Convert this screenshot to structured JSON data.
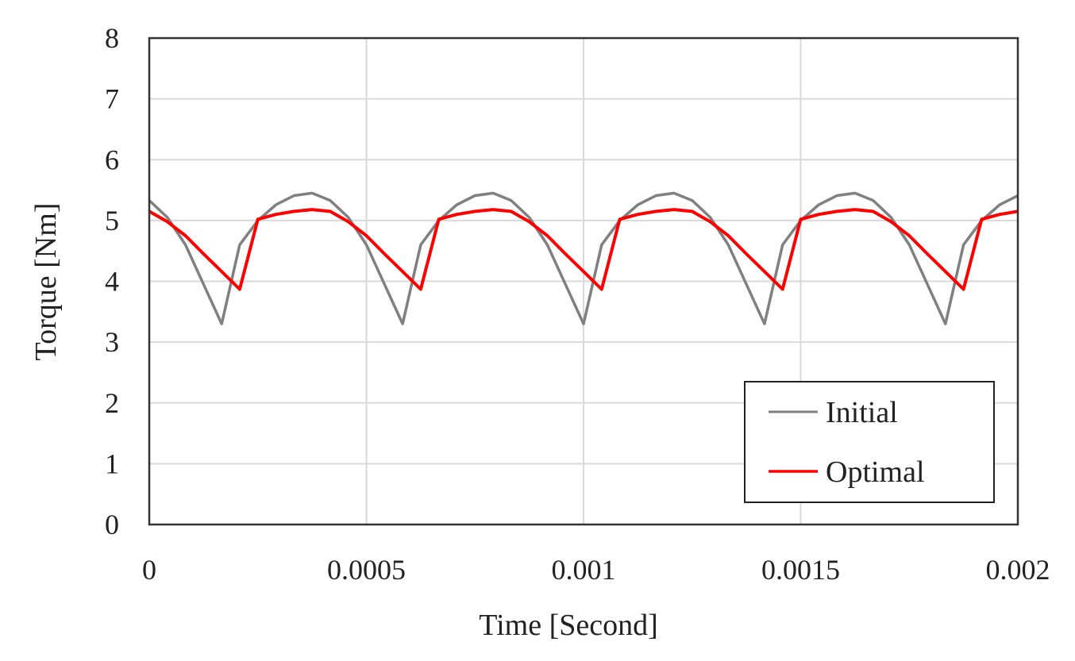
{
  "chart_data": {
    "type": "line",
    "title": "",
    "xlabel": "Time [Second]",
    "ylabel": "Torque [Nm]",
    "xlim": [
      0,
      0.002
    ],
    "ylim": [
      0,
      8
    ],
    "x_ticks": [
      "0",
      "0.0005",
      "0.001",
      "0.0015",
      "0.002"
    ],
    "x_tick_values": [
      0,
      0.0005,
      0.001,
      0.0015,
      0.002
    ],
    "y_ticks": [
      "0",
      "1",
      "2",
      "3",
      "4",
      "5",
      "6",
      "7",
      "8"
    ],
    "grid": true,
    "legend_position": "bottom-right",
    "x": [
      0,
      4.17e-05,
      8.33e-05,
      0.000125,
      0.0001667,
      0.0002083,
      0.00025,
      0.0002917,
      0.0003333,
      0.000375,
      0.0004167,
      0.0004583,
      0.0005,
      0.0005417,
      0.0005833,
      0.000625,
      0.0006667,
      0.0007083,
      0.00075,
      0.0007917,
      0.0008333,
      0.000875,
      0.0009167,
      0.0009583,
      0.001,
      0.0010417,
      0.0010833,
      0.001125,
      0.0011667,
      0.0012083,
      0.00125,
      0.0012917,
      0.0013333,
      0.001375,
      0.0014167,
      0.0014583,
      0.0015,
      0.0015417,
      0.0015833,
      0.001625,
      0.0016667,
      0.0017083,
      0.00175,
      0.0017917,
      0.0018333,
      0.001875,
      0.0019167,
      0.0019583,
      0.002
    ],
    "series": [
      {
        "name": "Initial",
        "color": "#808080",
        "values": [
          5.33,
          5.05,
          4.6,
          3.95,
          3.3,
          4.6,
          5.0,
          5.26,
          5.41,
          5.45,
          5.33,
          5.05,
          4.6,
          3.95,
          3.3,
          4.6,
          5.0,
          5.26,
          5.41,
          5.45,
          5.33,
          5.05,
          4.6,
          3.95,
          3.3,
          4.6,
          5.0,
          5.26,
          5.41,
          5.45,
          5.33,
          5.05,
          4.6,
          3.95,
          3.3,
          4.6,
          5.0,
          5.26,
          5.41,
          5.45,
          5.33,
          5.05,
          4.6,
          3.95,
          3.3,
          4.6,
          5.0,
          5.26,
          5.41
        ]
      },
      {
        "name": "Optimal",
        "color": "#ff0000",
        "values": [
          5.15,
          4.98,
          4.75,
          4.45,
          4.16,
          3.87,
          5.02,
          5.1,
          5.15,
          5.18,
          5.15,
          4.98,
          4.75,
          4.45,
          4.16,
          3.87,
          5.02,
          5.1,
          5.15,
          5.18,
          5.15,
          4.98,
          4.75,
          4.45,
          4.16,
          3.87,
          5.02,
          5.1,
          5.15,
          5.18,
          5.15,
          4.98,
          4.75,
          4.45,
          4.16,
          3.87,
          5.02,
          5.1,
          5.15,
          5.18,
          5.15,
          4.98,
          4.75,
          4.45,
          4.16,
          3.87,
          5.02,
          5.1,
          5.15
        ]
      }
    ]
  }
}
